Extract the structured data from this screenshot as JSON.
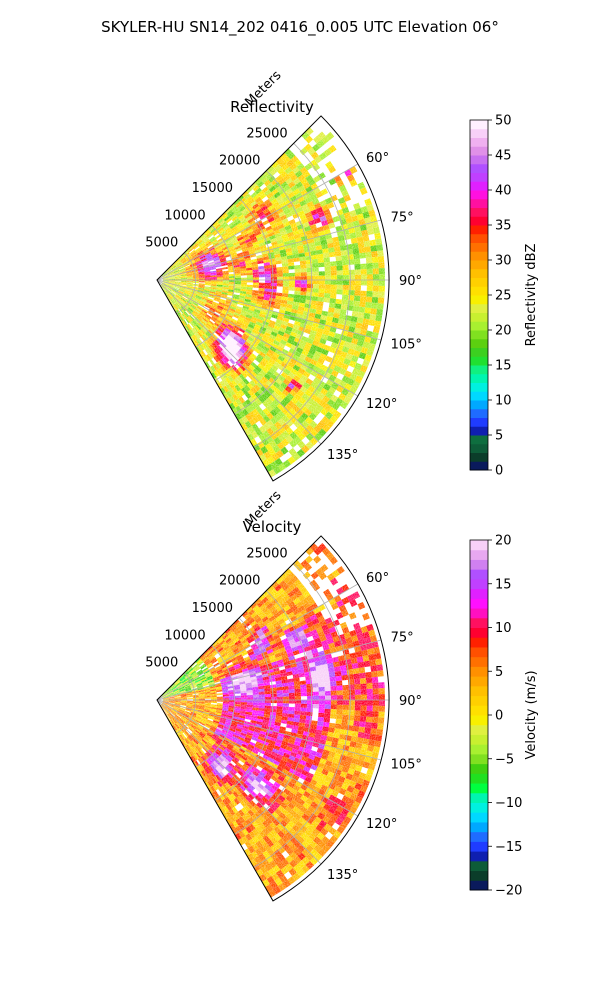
{
  "figure_title": "SKYLER-HU  SN14_202  0416_0.005 UTC Elevation 06°",
  "chart_data": [
    {
      "type": "heatmap",
      "projection": "polar-sector",
      "title": "Reflectivity",
      "radial_label": "Meters",
      "radial_ticks": [
        "5000",
        "10000",
        "15000",
        "20000",
        "25000"
      ],
      "radial_tick_values": [
        5000,
        10000,
        15000,
        20000,
        25000
      ],
      "radial_range": [
        0,
        30000
      ],
      "azimuth_range_deg": [
        45,
        150
      ],
      "azimuth_ticks": [
        "60°",
        "75°",
        "90°",
        "105°",
        "120°",
        "135°"
      ],
      "azimuth_tick_values": [
        60,
        75,
        90,
        105,
        120,
        135
      ],
      "grid": true,
      "colorbar": {
        "label": "Reflectivity dBZ",
        "range": [
          0,
          50
        ],
        "ticks": [
          "0",
          "5",
          "10",
          "15",
          "20",
          "25",
          "30",
          "35",
          "40",
          "45",
          "50"
        ],
        "tick_values": [
          0,
          5,
          10,
          15,
          20,
          25,
          30,
          35,
          40,
          45,
          50
        ],
        "colors": [
          "#0a1a5c",
          "#0b3d2a",
          "#0d5c38",
          "#0e6e3f",
          "#0f1fb0",
          "#1f3cff",
          "#1f6cff",
          "#00a8ff",
          "#00d8ff",
          "#00f0e0",
          "#00f5b0",
          "#10f080",
          "#20e030",
          "#3cd020",
          "#5cd010",
          "#80e020",
          "#a8f030",
          "#c8f030",
          "#e0f040",
          "#f8f000",
          "#ffe000",
          "#ffd000",
          "#ffc000",
          "#ffa800",
          "#ff9000",
          "#ff7000",
          "#ff5000",
          "#ff2000",
          "#ff0030",
          "#ff1060",
          "#ff10a0",
          "#ff10e0",
          "#e020ff",
          "#c040ff",
          "#b050ff",
          "#c870f0",
          "#e090e8",
          "#f0b0f0",
          "#f8d0f8",
          "#fff0ff"
        ]
      },
      "field_summary": {
        "dominant_range_dbz": [
          20,
          30
        ],
        "cells_max_dbz": 45
      }
    },
    {
      "type": "heatmap",
      "projection": "polar-sector",
      "title": "Velocity",
      "radial_label": "Meters",
      "radial_ticks": [
        "5000",
        "10000",
        "15000",
        "20000",
        "25000"
      ],
      "radial_tick_values": [
        5000,
        10000,
        15000,
        20000,
        25000
      ],
      "radial_range": [
        0,
        30000
      ],
      "azimuth_range_deg": [
        45,
        150
      ],
      "azimuth_ticks": [
        "60°",
        "75°",
        "90°",
        "105°",
        "120°",
        "135°"
      ],
      "azimuth_tick_values": [
        60,
        75,
        90,
        105,
        120,
        135
      ],
      "grid": true,
      "colorbar": {
        "label": "Velocity (m/s)",
        "range": [
          -20,
          20
        ],
        "ticks": [
          "−20",
          "−15",
          "−10",
          "−5",
          "0",
          "5",
          "10",
          "15",
          "20"
        ],
        "tick_values": [
          -20,
          -15,
          -10,
          -5,
          0,
          5,
          10,
          15,
          20
        ],
        "colors": [
          "#0a1a5c",
          "#0b3d2a",
          "#0d5c38",
          "#0f1fb0",
          "#1f3cff",
          "#1f6cff",
          "#00a8ff",
          "#00d8ff",
          "#00f0e0",
          "#00f5b0",
          "#00ff40",
          "#20e020",
          "#40d010",
          "#80e020",
          "#a8f030",
          "#c8f030",
          "#e0f040",
          "#f8f000",
          "#ffe000",
          "#ffd000",
          "#ffc000",
          "#ffa800",
          "#ff9000",
          "#ff7000",
          "#ff5000",
          "#ff2000",
          "#ff0030",
          "#ff1060",
          "#ff10c0",
          "#ff10ff",
          "#e020ff",
          "#c040ff",
          "#b050ff",
          "#d080f0",
          "#e8a8f0",
          "#f8d0f8"
        ]
      },
      "field_summary": {
        "dominant_range_ms": [
          0,
          12
        ],
        "max_ms": 15
      }
    }
  ]
}
